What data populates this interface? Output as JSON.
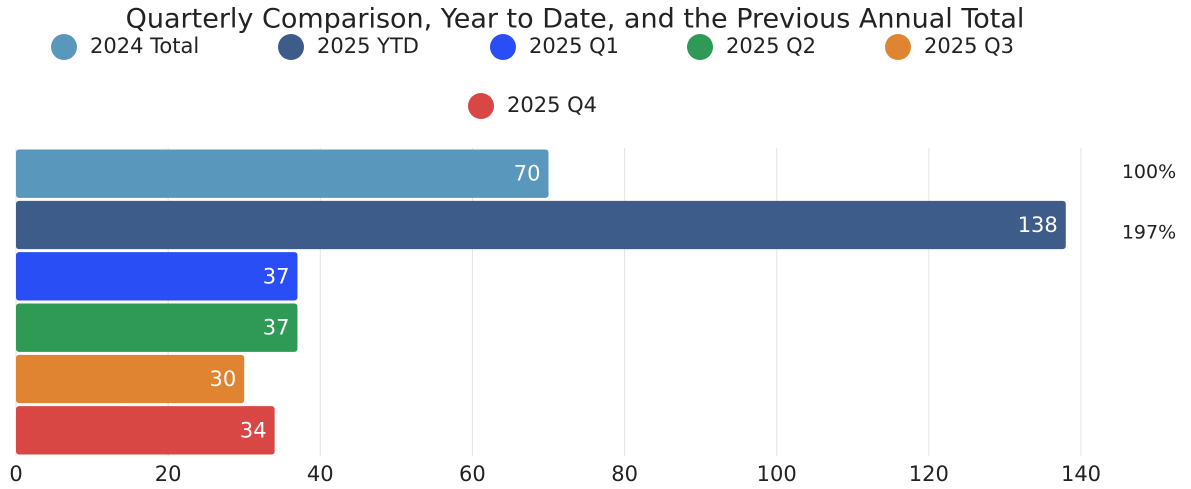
{
  "chart_data": {
    "type": "hbar",
    "title": "Quarterly Comparison, Year to Date, and the Previous Annual Total",
    "categories": [
      "2024 Total",
      "2025 YTD",
      "2025 Q1",
      "2025 Q2",
      "2025 Q3",
      "2025 Q4"
    ],
    "values": [
      70,
      138,
      37,
      37,
      30,
      34
    ],
    "colors": [
      "#5a97bd",
      "#3d5c8a",
      "#2a4ef5",
      "#2e9a55",
      "#e08432",
      "#d84744"
    ],
    "annotations": [
      "100%",
      "197%"
    ],
    "xlim": [
      0,
      140
    ],
    "xticks": [
      0,
      20,
      40,
      60,
      80,
      100,
      120,
      140
    ],
    "grid": true,
    "legend": "top"
  }
}
